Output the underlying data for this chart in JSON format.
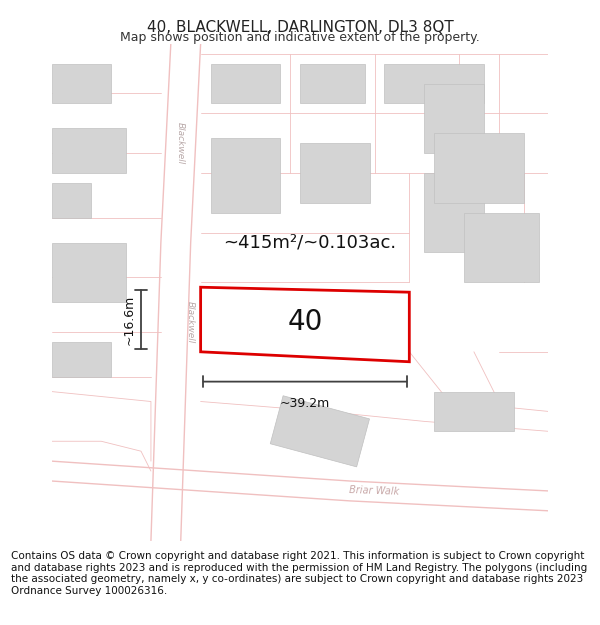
{
  "title": "40, BLACKWELL, DARLINGTON, DL3 8QT",
  "subtitle": "Map shows position and indicative extent of the property.",
  "footer": "Contains OS data © Crown copyright and database right 2021. This information is subject to Crown copyright and database rights 2023 and is reproduced with the permission of HM Land Registry. The polygons (including the associated geometry, namely x, y co-ordinates) are subject to Crown copyright and database rights 2023 Ordnance Survey 100026316.",
  "background_color": "#ffffff",
  "map_background": "#f7f2f2",
  "road_color": "#f0c0c0",
  "building_color": "#d4d4d4",
  "building_edge": "#c0c0c0",
  "highlight_color": "#dd0000",
  "area_label": "~415m²/~0.103ac.",
  "house_number": "40",
  "dim_width": "~39.2m",
  "dim_height": "~16.6m",
  "street_blackwell": "Blackwell",
  "street_briar": "Briar Walk",
  "title_fontsize": 11,
  "subtitle_fontsize": 9,
  "footer_fontsize": 7.5,
  "label_color": "#c0a0a0"
}
